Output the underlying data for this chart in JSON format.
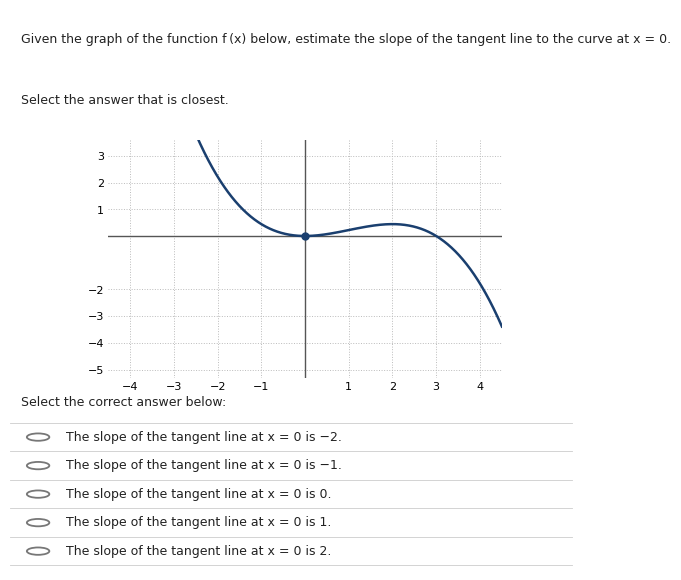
{
  "title_line1": "Given the graph of the function f (x) below, estimate the slope of the tangent line to the curve at x = 0.",
  "title_line2": "Select the answer that is closest.",
  "title_fontsize": 9.0,
  "graph_xlim": [
    -4.5,
    4.5
  ],
  "graph_ylim": [
    -5.3,
    3.6
  ],
  "xticks": [
    -4,
    -3,
    -2,
    -1,
    1,
    2,
    3,
    4
  ],
  "yticks": [
    -5,
    -4,
    -3,
    -2,
    1,
    2,
    3
  ],
  "curve_color": "#1a3f6f",
  "curve_linewidth": 1.8,
  "dot_color": "#1a3f6f",
  "dot_size": 5,
  "axis_color": "#555555",
  "grid_color": "#bbbbbb",
  "background_color": "#ffffff",
  "answer_label_fontsize": 9.0,
  "answers": [
    "The slope of the tangent line at x = 0 is −2.",
    "The slope of the tangent line at x = 0 is −1.",
    "The slope of the tangent line at x = 0 is 0.",
    "The slope of the tangent line at x = 0 is 1.",
    "The slope of the tangent line at x = 0 is 2."
  ],
  "select_label": "Select the correct answer below:",
  "select_fontsize": 9.0
}
